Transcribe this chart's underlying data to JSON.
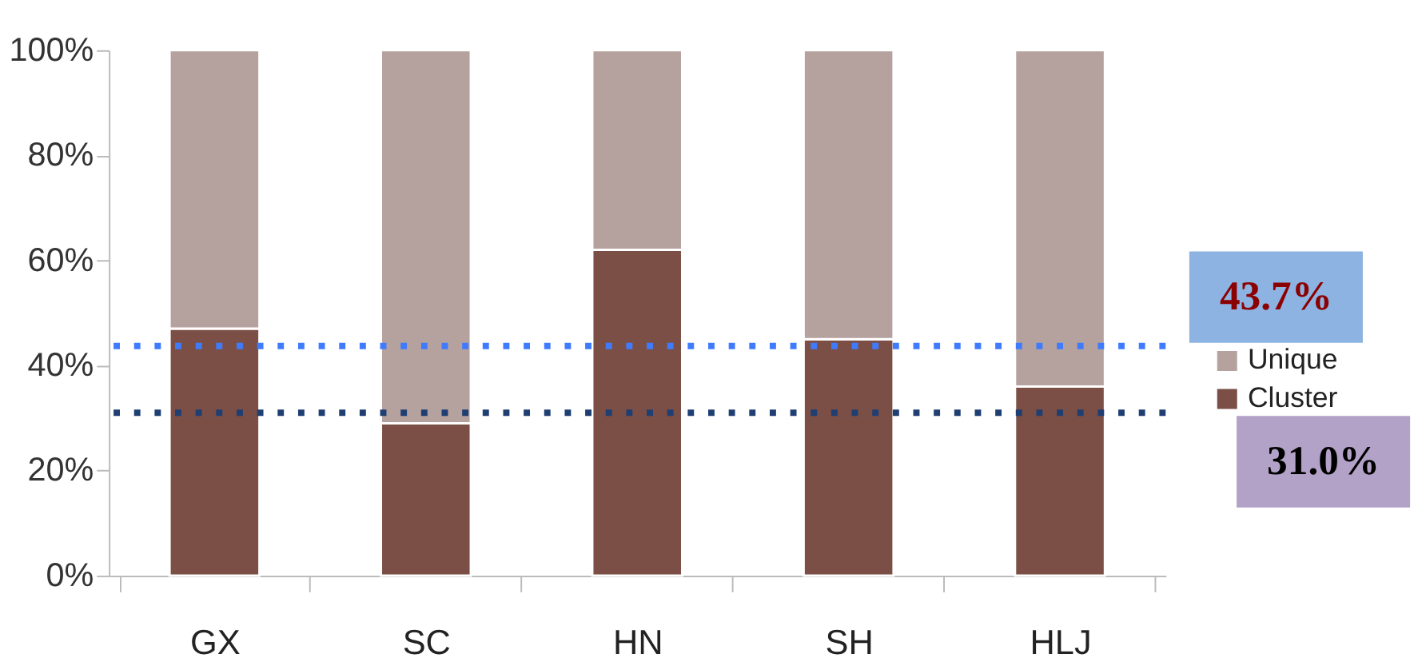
{
  "chart_data": {
    "type": "bar",
    "stacked": true,
    "categories": [
      "GX",
      "SC",
      "HN",
      "SH",
      "HLJ"
    ],
    "series": [
      {
        "name": "Cluster",
        "color": "#7b4f45",
        "values": [
          47,
          29,
          62,
          45,
          36
        ]
      },
      {
        "name": "Unique",
        "color": "#b5a19d",
        "values": [
          53,
          71,
          38,
          55,
          64
        ]
      }
    ],
    "ylim": [
      0,
      100
    ],
    "yticks": [
      {
        "value": 0,
        "label": "0%"
      },
      {
        "value": 20,
        "label": "20%"
      },
      {
        "value": 40,
        "label": "40%"
      },
      {
        "value": 60,
        "label": "60%"
      },
      {
        "value": 80,
        "label": "80%"
      },
      {
        "value": 100,
        "label": "100%"
      }
    ],
    "ref_lines": [
      {
        "axis": "y",
        "value": 43.7,
        "label": "43.7%",
        "color": "#3f7bff",
        "line_style": "dotted"
      },
      {
        "axis": "y",
        "value": 31.0,
        "label": "31.0%",
        "color": "#1f3f73",
        "line_style": "dotted"
      }
    ],
    "grid": false,
    "legend": "right"
  }
}
